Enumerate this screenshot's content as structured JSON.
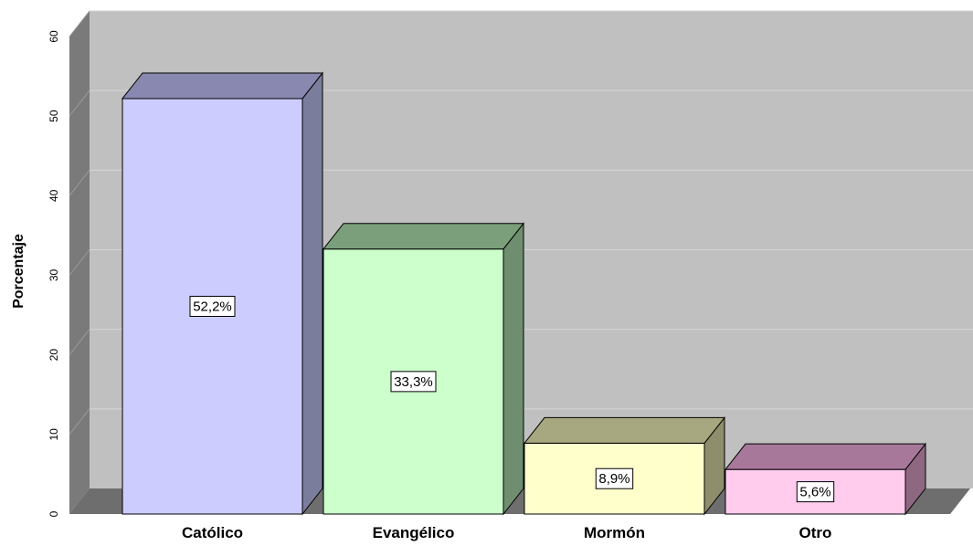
{
  "chart_data": {
    "type": "bar",
    "categories": [
      "Católico",
      "Evangélico",
      "Mormón",
      "Otro"
    ],
    "values": [
      52.2,
      33.3,
      8.9,
      5.6
    ],
    "data_labels": [
      "52,2%",
      "33,3%",
      "8,9%",
      "5,6%"
    ],
    "title": "",
    "xlabel": "",
    "ylabel": "Porcentaje",
    "ylim": [
      0,
      60
    ],
    "yticks": [
      "0",
      "10",
      "20",
      "30",
      "40",
      "50",
      "60"
    ],
    "grid": true,
    "three_d": true,
    "colors": {
      "bars": [
        "#ccccff",
        "#ccffcc",
        "#ffffcc",
        "#ffccee"
      ],
      "bar_tops": [
        "#8888b0",
        "#7a9f7a",
        "#a8a880",
        "#a8789a"
      ],
      "bar_sides": [
        "#7b7d9c",
        "#6f8e6f",
        "#8e8e6c",
        "#8e6880"
      ],
      "wall": "#c0c0c0",
      "side_wall": "#7a7a7a",
      "floor": "#6e6e6e",
      "grid": "#d6d6d6"
    }
  }
}
